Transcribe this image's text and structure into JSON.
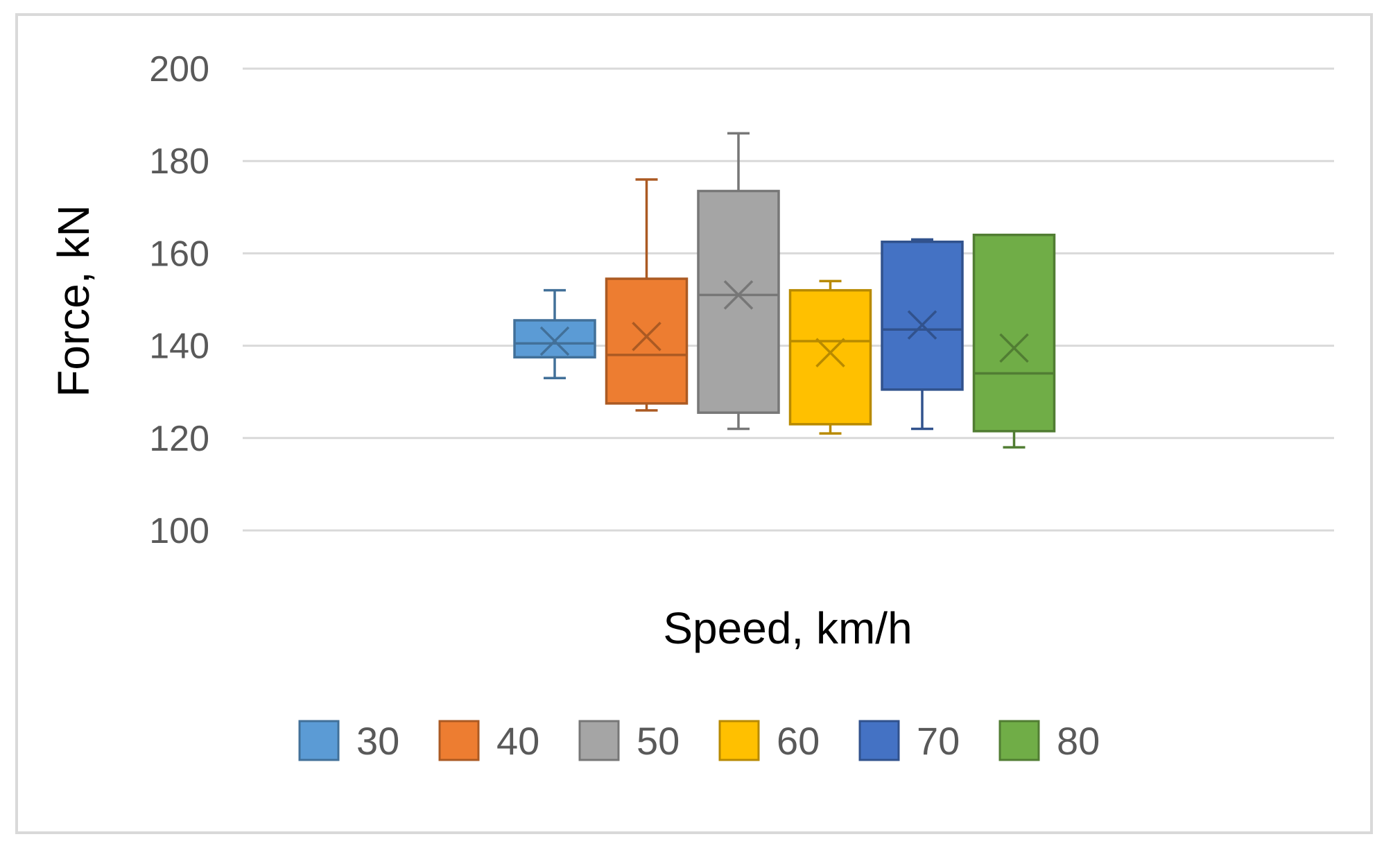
{
  "chart_data": {
    "type": "box",
    "xlabel": "Speed, km/h",
    "ylabel": "Force, kN",
    "ylim": [
      100,
      200
    ],
    "yticks": [
      100,
      120,
      140,
      160,
      180,
      200
    ],
    "grid": true,
    "legend_position": "bottom",
    "series": [
      {
        "name": "30",
        "color": "#5B9BD5",
        "min": 133,
        "q1": 137.5,
        "median": 140.5,
        "q3": 145.5,
        "max": 152,
        "mean": 141
      },
      {
        "name": "40",
        "color": "#ED7D31",
        "min": 126,
        "q1": 127.5,
        "median": 138,
        "q3": 154.5,
        "max": 176,
        "mean": 142
      },
      {
        "name": "50",
        "color": "#A5A5A5",
        "min": 122,
        "q1": 125.5,
        "median": 151,
        "q3": 173.5,
        "max": 186,
        "mean": 151
      },
      {
        "name": "60",
        "color": "#FFC000",
        "min": 121,
        "q1": 123,
        "median": 141,
        "q3": 152,
        "max": 154,
        "mean": 138.5
      },
      {
        "name": "70",
        "color": "#4472C4",
        "min": 122,
        "q1": 130.5,
        "median": 143.5,
        "q3": 162.5,
        "max": 163,
        "mean": 144.5
      },
      {
        "name": "80",
        "color": "#70AD47",
        "min": 118,
        "q1": 121.5,
        "median": 134,
        "q3": 164,
        "max": 164,
        "mean": 139.5
      }
    ]
  }
}
